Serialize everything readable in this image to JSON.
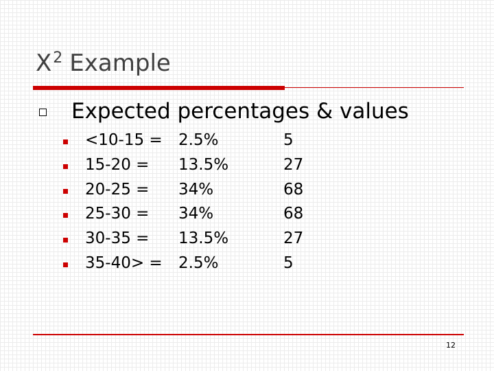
{
  "title": {
    "base": "X",
    "sup": "2",
    "rest": "Example"
  },
  "bullet": "Expected percentages & values",
  "rows": [
    [
      "<10-15 =",
      "2.5%",
      "5"
    ],
    [
      "15-20 =",
      "13.5%",
      "27"
    ],
    [
      "20-25 =",
      "34%",
      "68"
    ],
    [
      "25-30 =",
      "34%",
      "68"
    ],
    [
      "30-35 =",
      "13.5%",
      "27"
    ],
    [
      "35-40> =",
      "2.5%",
      "5"
    ]
  ],
  "page_number": "12"
}
